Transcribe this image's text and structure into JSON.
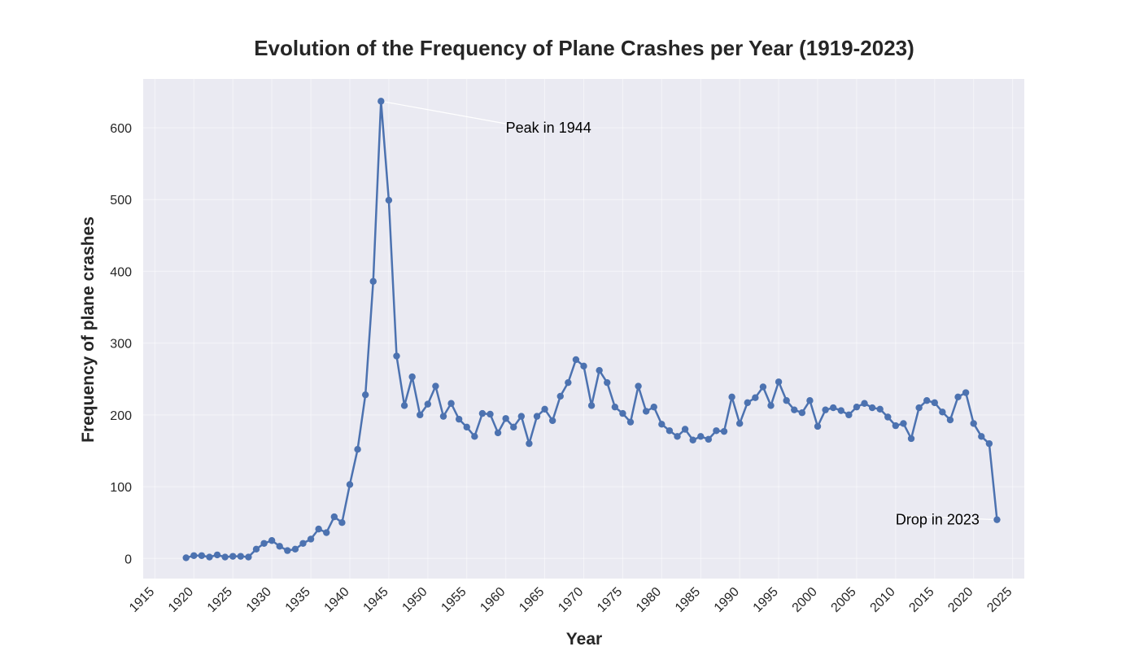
{
  "chart_data": {
    "type": "line",
    "title": "Evolution of the Frequency of Plane Crashes per Year (1919-2023)",
    "xlabel": "Year",
    "ylabel": "Frequency of plane crashes",
    "xlim": [
      1913.5,
      2026.5
    ],
    "ylim": [
      -28,
      668
    ],
    "x_ticks": [
      1915,
      1920,
      1925,
      1930,
      1935,
      1940,
      1945,
      1950,
      1955,
      1960,
      1965,
      1970,
      1975,
      1980,
      1985,
      1990,
      1995,
      2000,
      2005,
      2010,
      2015,
      2020,
      2025
    ],
    "y_ticks": [
      0,
      100,
      200,
      300,
      400,
      500,
      600
    ],
    "grid": true,
    "series": [
      {
        "color": "#4c72b0",
        "x": [
          1919,
          1920,
          1921,
          1922,
          1923,
          1924,
          1925,
          1926,
          1927,
          1928,
          1929,
          1930,
          1931,
          1932,
          1933,
          1934,
          1935,
          1936,
          1937,
          1938,
          1939,
          1940,
          1941,
          1942,
          1943,
          1944,
          1945,
          1946,
          1947,
          1948,
          1949,
          1950,
          1951,
          1952,
          1953,
          1954,
          1955,
          1956,
          1957,
          1958,
          1959,
          1960,
          1961,
          1962,
          1963,
          1964,
          1965,
          1966,
          1967,
          1968,
          1969,
          1970,
          1971,
          1972,
          1973,
          1974,
          1975,
          1976,
          1977,
          1978,
          1979,
          1980,
          1981,
          1982,
          1983,
          1984,
          1985,
          1986,
          1987,
          1988,
          1989,
          1990,
          1991,
          1992,
          1993,
          1994,
          1995,
          1996,
          1997,
          1998,
          1999,
          2000,
          2001,
          2002,
          2003,
          2004,
          2005,
          2006,
          2007,
          2008,
          2009,
          2010,
          2011,
          2012,
          2013,
          2014,
          2015,
          2016,
          2017,
          2018,
          2019,
          2020,
          2021,
          2022,
          2023
        ],
        "values": [
          1,
          4,
          4,
          2,
          5,
          2,
          3,
          3,
          2,
          13,
          21,
          25,
          17,
          11,
          13,
          21,
          27,
          41,
          36,
          58,
          50,
          103,
          152,
          228,
          386,
          637,
          499,
          282,
          213,
          253,
          200,
          215,
          240,
          198,
          216,
          194,
          183,
          170,
          202,
          201,
          175,
          195,
          183,
          198,
          160,
          198,
          208,
          192,
          226,
          245,
          277,
          268,
          213,
          262,
          245,
          211,
          202,
          190,
          240,
          205,
          211,
          187,
          178,
          170,
          180,
          165,
          170,
          166,
          178,
          177,
          225,
          188,
          217,
          224,
          239,
          213,
          246,
          220,
          207,
          203,
          220,
          184,
          207,
          210,
          206,
          200,
          211,
          216,
          210,
          208,
          197,
          185,
          188,
          167,
          210,
          220,
          217,
          204,
          193,
          225,
          231,
          188,
          170,
          160,
          54
        ]
      }
    ],
    "annotations": [
      {
        "text": "Peak in 1944",
        "x": 1944,
        "y": 637,
        "text_x": 1960,
        "text_y": 600,
        "arrow": true
      },
      {
        "text": "Drop in 2023",
        "x": 2023,
        "y": 54,
        "text_x": 2010,
        "text_y": 54,
        "arrow": true
      }
    ],
    "style": {
      "background": "#eaeaf2",
      "grid_color": "#ffffff",
      "line_color": "#4c72b0"
    }
  }
}
